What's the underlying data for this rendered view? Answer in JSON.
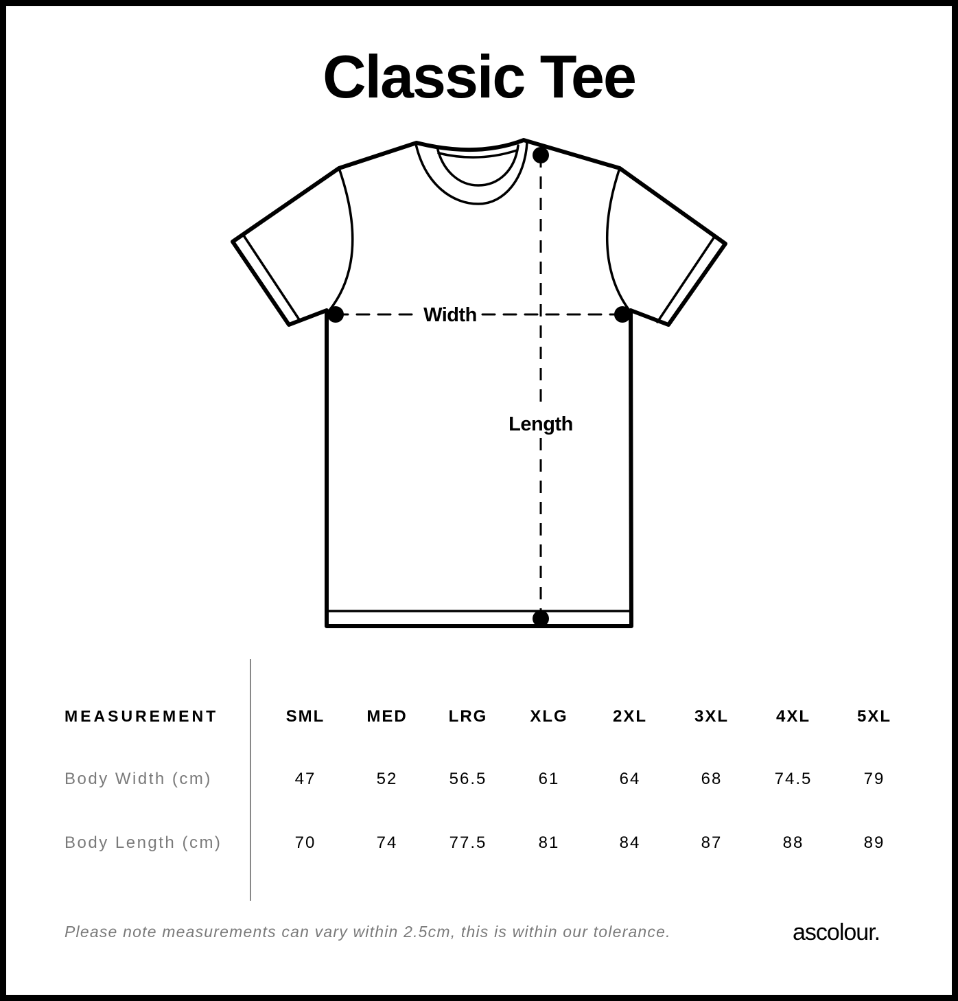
{
  "title": "Classic Tee",
  "diagram": {
    "width_label": "Width",
    "length_label": "Length"
  },
  "table": {
    "header_label": "MEASUREMENT",
    "sizes": [
      "SML",
      "MED",
      "LRG",
      "XLG",
      "2XL",
      "3XL",
      "4XL",
      "5XL"
    ],
    "rows": [
      {
        "label": "Body Width (cm)",
        "values": [
          "47",
          "52",
          "56.5",
          "61",
          "64",
          "68",
          "74.5",
          "79"
        ]
      },
      {
        "label": "Body Length (cm)",
        "values": [
          "70",
          "74",
          "77.5",
          "81",
          "84",
          "87",
          "88",
          "89"
        ]
      }
    ]
  },
  "footer": {
    "note": "Please note measurements can vary within 2.5cm, this is within our tolerance.",
    "brand": "ascolour."
  }
}
